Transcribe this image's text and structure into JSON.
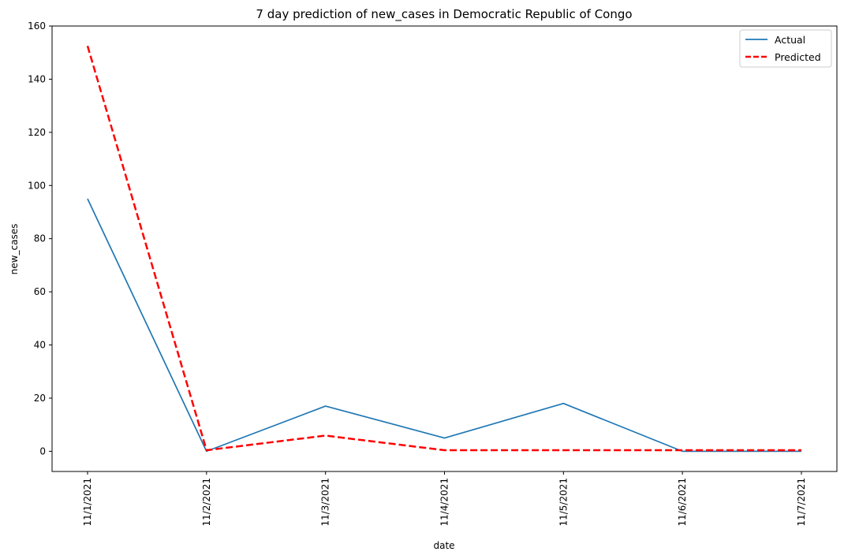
{
  "chart_data": {
    "type": "line",
    "title": "7 day prediction of new_cases in Democratic Republic of Congo",
    "xlabel": "date",
    "ylabel": "new_cases",
    "categories": [
      "11/1/2021",
      "11/2/2021",
      "11/3/2021",
      "11/4/2021",
      "11/5/2021",
      "11/6/2021",
      "11/7/2021"
    ],
    "ylim": [
      -7.6,
      160
    ],
    "yticks": [
      0,
      20,
      40,
      60,
      80,
      100,
      120,
      140,
      160
    ],
    "grid": false,
    "legend_position": "top-right",
    "series": [
      {
        "name": "Actual",
        "values": [
          95,
          0,
          17,
          5,
          18,
          0,
          0
        ],
        "color": "#1f77b4",
        "style": "solid"
      },
      {
        "name": "Predicted",
        "values": [
          152.5,
          0.4,
          5.9,
          0.4,
          0.4,
          0.4,
          0.4
        ],
        "color": "#ff0000",
        "style": "dashed"
      }
    ]
  }
}
